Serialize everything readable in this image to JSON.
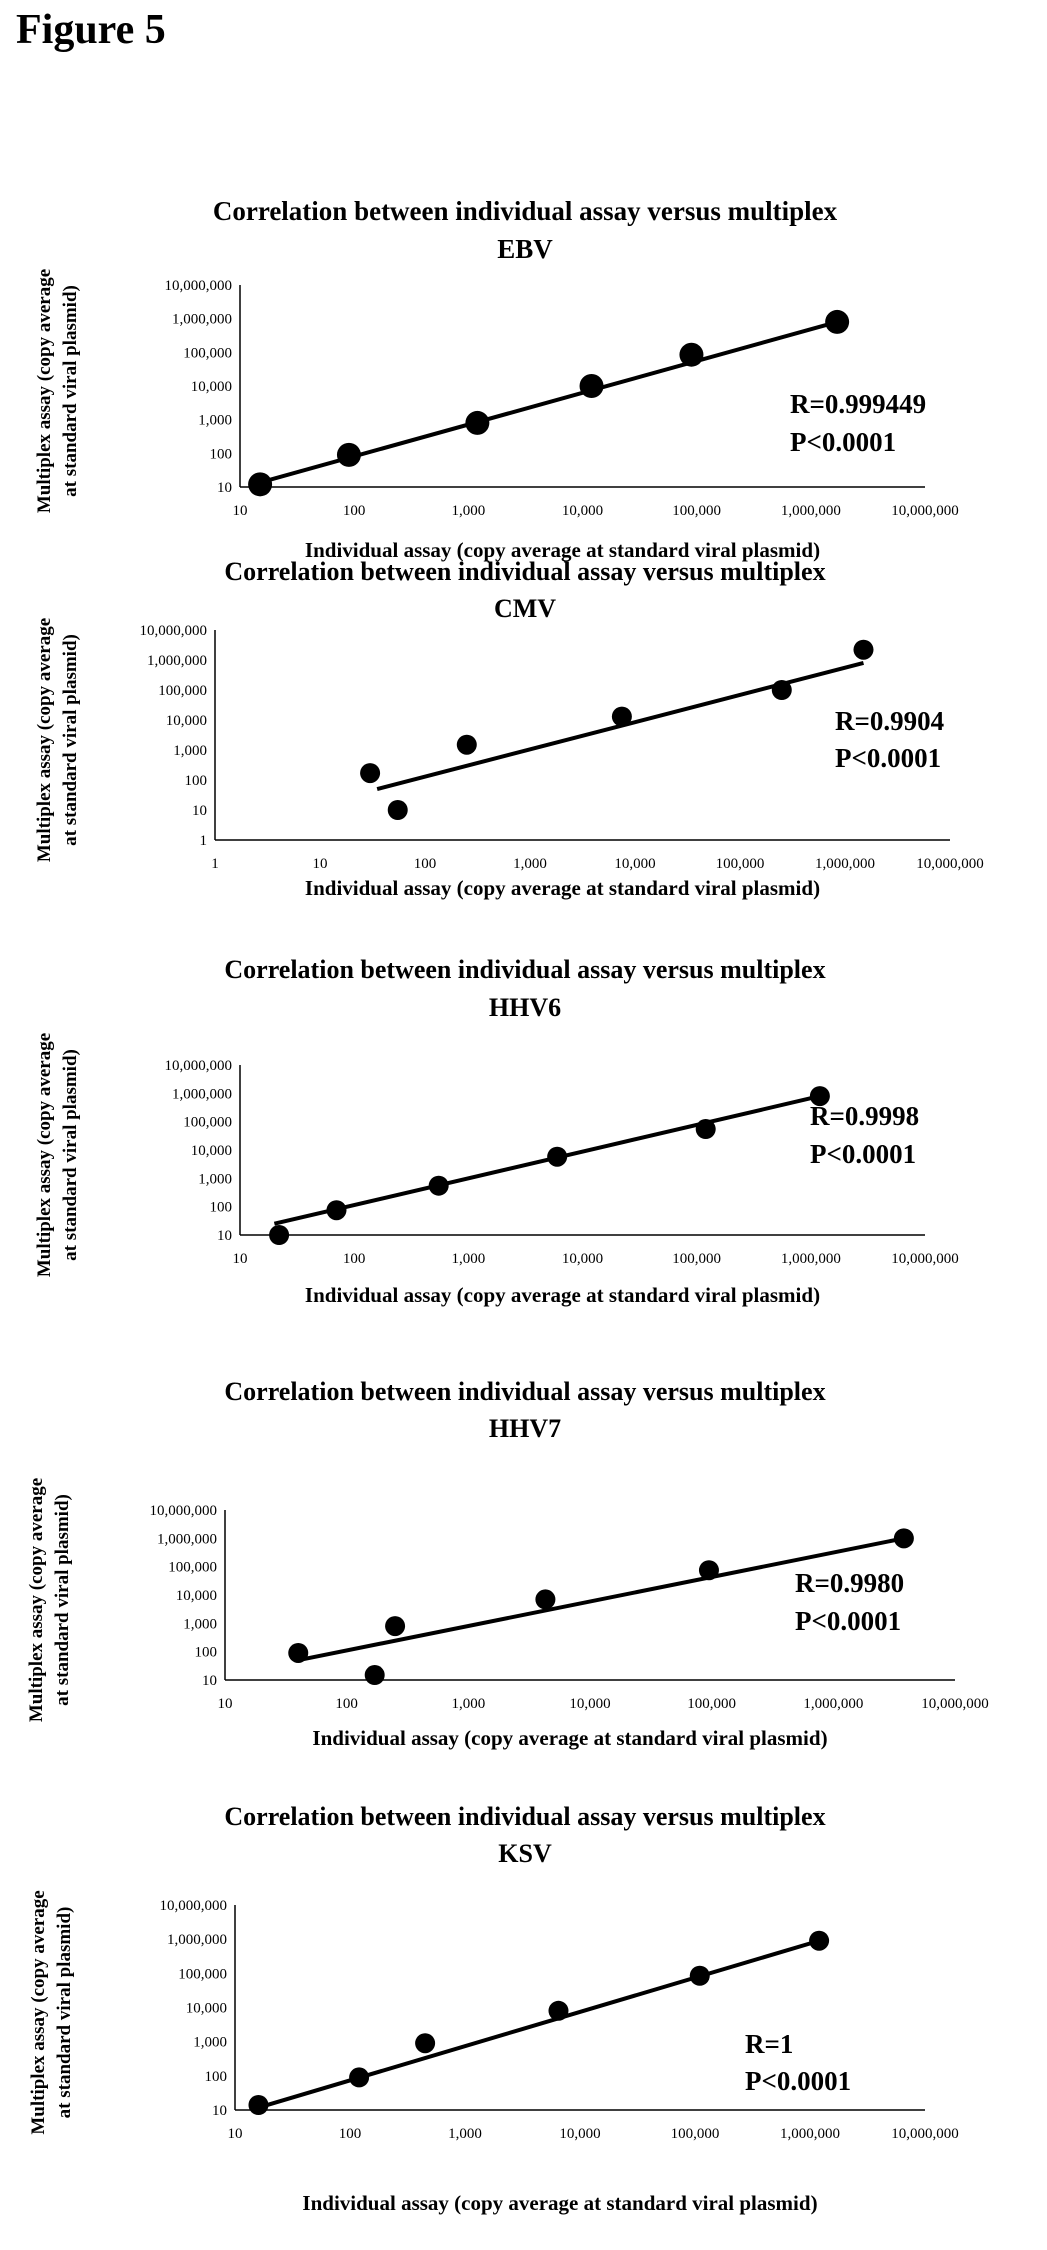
{
  "figure_label": "Figure 5",
  "chart_data": [
    {
      "type": "scatter",
      "title": "Correlation between individual assay versus multiplex",
      "subtitle": "EBV",
      "xlabel": "Individual assay (copy average at standard viral plasmid)",
      "ylabel_line1": "Multiplex assay (copy average",
      "ylabel_line2": "at standard viral plasmid)",
      "x_scale": "log",
      "y_scale": "log",
      "xlim": [
        10,
        10000000
      ],
      "ylim": [
        10,
        10000000
      ],
      "x_ticks": [
        "10",
        "100",
        "1,000",
        "10,000",
        "100,000",
        "1,000,000",
        "10,000,000"
      ],
      "y_ticks": [
        "10",
        "100",
        "1,000",
        "10,000",
        "100,000",
        "1,000,000",
        "10,000,000"
      ],
      "points": [
        {
          "x": 15,
          "y": 12
        },
        {
          "x": 90,
          "y": 90
        },
        {
          "x": 1200,
          "y": 800
        },
        {
          "x": 12000,
          "y": 10000
        },
        {
          "x": 90000,
          "y": 85000
        },
        {
          "x": 1700000,
          "y": 800000
        }
      ],
      "fit_line": {
        "x": [
          12,
          1700000
        ],
        "y": [
          11,
          800000
        ]
      },
      "r_text": "R=0.999449",
      "p_text": "P<0.0001",
      "marker_size": "large",
      "grid": false
    },
    {
      "type": "scatter",
      "title": "Correlation between individual assay versus multiplex",
      "subtitle": "CMV",
      "xlabel": "Individual assay (copy average at standard viral plasmid)",
      "ylabel_line1": "Multiplex assay (copy average",
      "ylabel_line2": "at standard viral plasmid)",
      "x_scale": "log",
      "y_scale": "log",
      "xlim": [
        1,
        10000000
      ],
      "ylim": [
        1,
        10000000
      ],
      "x_ticks": [
        "1",
        "10",
        "100",
        "1,000",
        "10,000",
        "100,000",
        "1,000,000",
        "10,000,000"
      ],
      "y_ticks": [
        "1",
        "10",
        "100",
        "1,000",
        "10,000",
        "100,000",
        "1,000,000",
        "10,000,000"
      ],
      "points": [
        {
          "x": 30,
          "y": 170
        },
        {
          "x": 55,
          "y": 10
        },
        {
          "x": 250,
          "y": 1500
        },
        {
          "x": 7500,
          "y": 13000
        },
        {
          "x": 250000,
          "y": 100000
        },
        {
          "x": 1500000,
          "y": 2200000
        }
      ],
      "fit_line": {
        "x": [
          35,
          1500000
        ],
        "y": [
          50,
          800000
        ]
      },
      "r_text": "R=0.9904",
      "p_text": "P<0.0001",
      "marker_size": "medium",
      "grid": false
    },
    {
      "type": "scatter",
      "title": "Correlation between individual assay versus multiplex",
      "subtitle": "HHV6",
      "xlabel": "Individual assay (copy average at standard viral plasmid)",
      "ylabel_line1": "Multiplex assay (copy average",
      "ylabel_line2": "at standard viral plasmid)",
      "x_scale": "log",
      "y_scale": "log",
      "xlim": [
        10,
        10000000
      ],
      "ylim": [
        10,
        10000000
      ],
      "x_ticks": [
        "10",
        "100",
        "1,000",
        "10,000",
        "100,000",
        "1,000,000",
        "10,000,000"
      ],
      "y_ticks": [
        "10",
        "100",
        "1,000",
        "10,000",
        "100,000",
        "1,000,000",
        "10,000,000"
      ],
      "points": [
        {
          "x": 22,
          "y": 10
        },
        {
          "x": 70,
          "y": 75
        },
        {
          "x": 550,
          "y": 550
        },
        {
          "x": 6000,
          "y": 5800
        },
        {
          "x": 120000,
          "y": 55000
        },
        {
          "x": 1200000,
          "y": 800000
        }
      ],
      "fit_line": {
        "x": [
          20,
          1200000
        ],
        "y": [
          25,
          800000
        ]
      },
      "r_text": "R=0.9998",
      "p_text": "P<0.0001",
      "marker_size": "medium",
      "grid": false
    },
    {
      "type": "scatter",
      "title": "Correlation between individual assay versus multiplex",
      "subtitle": "HHV7",
      "xlabel": "Individual assay (copy average at standard viral plasmid)",
      "ylabel_line1": "Multiplex assay (copy average",
      "ylabel_line2": "at standard viral plasmid)",
      "x_scale": "log",
      "y_scale": "log",
      "xlim": [
        10,
        10000000
      ],
      "ylim": [
        10,
        10000000
      ],
      "x_ticks": [
        "10",
        "100",
        "1,000",
        "10,000",
        "100,000",
        "1,000,000",
        "10,000,000"
      ],
      "y_ticks": [
        "10",
        "100",
        "1,000",
        "10,000",
        "100,000",
        "1,000,000",
        "10,000,000"
      ],
      "points": [
        {
          "x": 40,
          "y": 90
        },
        {
          "x": 170,
          "y": 15
        },
        {
          "x": 250,
          "y": 800
        },
        {
          "x": 4300,
          "y": 7000
        },
        {
          "x": 95000,
          "y": 75000
        },
        {
          "x": 3800000,
          "y": 1000000
        }
      ],
      "fit_line": {
        "x": [
          40,
          3800000
        ],
        "y": [
          50,
          1000000
        ]
      },
      "r_text": "R=0.9980",
      "p_text": "P<0.0001",
      "marker_size": "medium",
      "grid": false
    },
    {
      "type": "scatter",
      "title": "Correlation between individual assay versus multiplex",
      "subtitle": "KSV",
      "xlabel": "Individual assay (copy average at standard viral plasmid)",
      "ylabel_line1": "Multiplex assay (copy average",
      "ylabel_line2": "at standard viral plasmid)",
      "x_scale": "log",
      "y_scale": "log",
      "xlim": [
        10,
        10000000
      ],
      "ylim": [
        10,
        10000000
      ],
      "x_ticks": [
        "10",
        "100",
        "1,000",
        "10,000",
        "100,000",
        "1,000,000",
        "10,000,000"
      ],
      "y_ticks": [
        "10",
        "100",
        "1,000",
        "10,000",
        "100,000",
        "1,000,000",
        "10,000,000"
      ],
      "points": [
        {
          "x": 16,
          "y": 14
        },
        {
          "x": 120,
          "y": 90
        },
        {
          "x": 450,
          "y": 900
        },
        {
          "x": 6500,
          "y": 8000
        },
        {
          "x": 110000,
          "y": 85000
        },
        {
          "x": 1200000,
          "y": 900000
        }
      ],
      "fit_line": {
        "x": [
          15,
          1200000
        ],
        "y": [
          11,
          900000
        ]
      },
      "r_text": "R=1",
      "p_text": "P<0.0001",
      "marker_size": "medium",
      "grid": false
    }
  ]
}
